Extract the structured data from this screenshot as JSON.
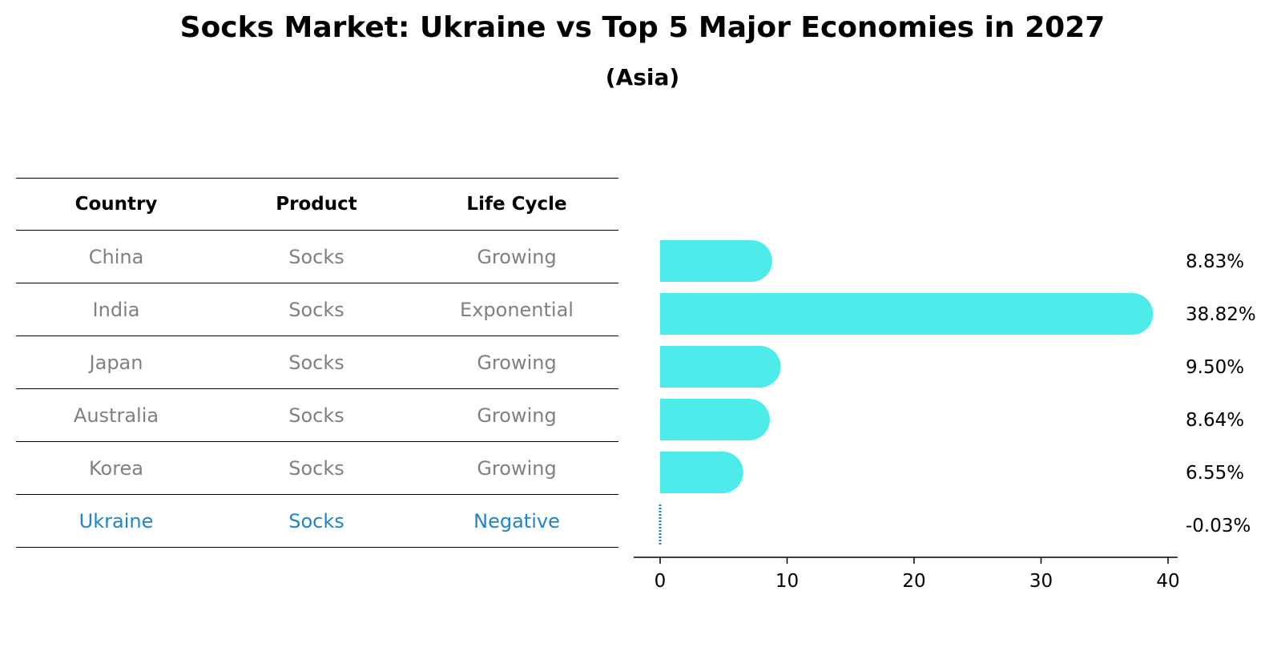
{
  "title": "Socks Market: Ukraine vs Top 5 Major Economies in 2027",
  "subtitle": "(Asia)",
  "table": {
    "headers": [
      "Country",
      "Product",
      "Life Cycle"
    ],
    "rows": [
      [
        "China",
        "Socks",
        "Growing"
      ],
      [
        "India",
        "Socks",
        "Exponential"
      ],
      [
        "Japan",
        "Socks",
        "Growing"
      ],
      [
        "Australia",
        "Socks",
        "Growing"
      ],
      [
        "Korea",
        "Socks",
        "Growing"
      ],
      [
        "Ukraine",
        "Socks",
        "Negative"
      ]
    ],
    "highlight_row": 5
  },
  "colors": {
    "bar": "#4deceb",
    "highlight": "#1f84c9",
    "muted": "#808080"
  },
  "chart_data": {
    "type": "bar",
    "orientation": "horizontal",
    "categories": [
      "China",
      "India",
      "Japan",
      "Australia",
      "Korea",
      "Ukraine"
    ],
    "values": [
      8.83,
      38.82,
      9.5,
      8.64,
      6.55,
      -0.03
    ],
    "labels": [
      "8.83%",
      "38.82%",
      "9.50%",
      "8.64%",
      "6.55%",
      "-0.03%"
    ],
    "xlim": [
      -2,
      41
    ],
    "xticks": [
      0,
      10,
      20,
      30,
      40
    ],
    "grid": false
  }
}
